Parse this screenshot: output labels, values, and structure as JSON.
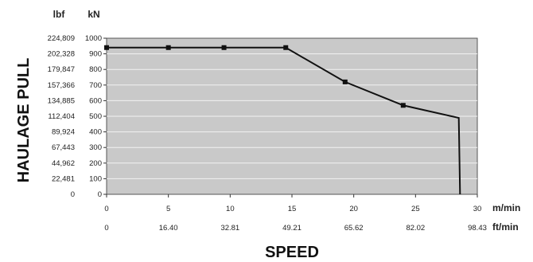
{
  "chart_data": {
    "type": "line",
    "xlabel": "SPEED",
    "ylabel": "HAULAGE PULL",
    "y_units": [
      "lbf",
      "kN"
    ],
    "x_units": [
      "m/min",
      "ft/min"
    ],
    "xlim": [
      0,
      30
    ],
    "ylim": [
      0,
      1000
    ],
    "grid": true,
    "x_ticks": {
      "m_min": [
        "0",
        "5",
        "10",
        "15",
        "20",
        "25",
        "30"
      ],
      "ft_min": [
        "0",
        "16.40",
        "32.81",
        "49.21",
        "65.62",
        "82.02",
        "98.43"
      ]
    },
    "y_ticks": {
      "kN": [
        "0",
        "100",
        "200",
        "300",
        "400",
        "500",
        "600",
        "700",
        "800",
        "900",
        "1000"
      ],
      "lbf": [
        "0",
        "22,481",
        "44,962",
        "67,443",
        "89,924",
        "112,404",
        "134,885",
        "157,366",
        "179,847",
        "202,328",
        "224,809"
      ]
    },
    "series": [
      {
        "x": [
          0,
          5,
          9.5,
          14.5,
          19.3,
          24.0,
          28.5,
          28.6
        ],
        "y": [
          940,
          940,
          940,
          940,
          720,
          570,
          490,
          0
        ],
        "markers": [
          0,
          5,
          9.5,
          14.5,
          19.3,
          24.0
        ]
      }
    ]
  }
}
